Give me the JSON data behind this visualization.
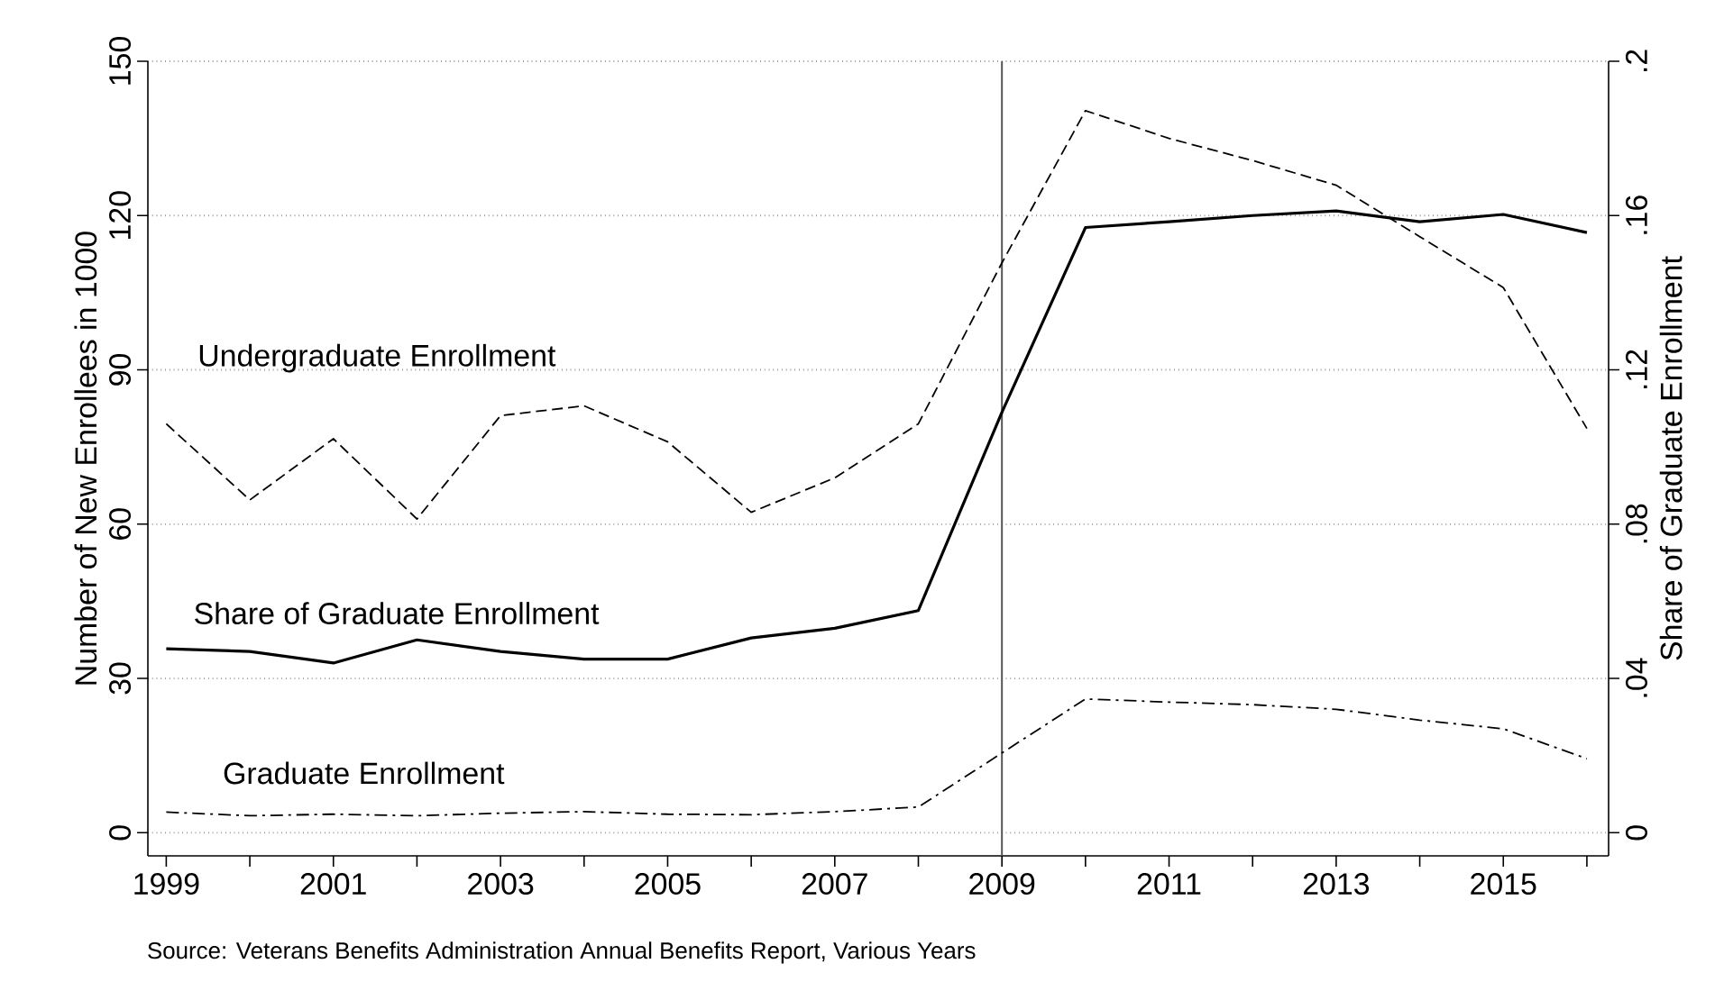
{
  "chart_data": {
    "type": "line",
    "x": [
      1999,
      2000,
      2001,
      2002,
      2003,
      2004,
      2005,
      2006,
      2007,
      2008,
      2009,
      2010,
      2011,
      2012,
      2013,
      2014,
      2015,
      2016
    ],
    "series": [
      {
        "name": "Undergraduate Enrollment",
        "color": "#000000",
        "line_style": "dashed",
        "values": [
          79.5,
          64.7,
          76.6,
          61,
          81.1,
          83,
          76,
          62.3,
          69,
          79.5,
          110.8,
          140.4,
          135,
          130.7,
          125.9,
          115.9,
          106,
          78.6
        ]
      },
      {
        "name": "Share of Graduate Enrollment",
        "color": "#000000",
        "line_style": "solid",
        "axis": "y2",
        "values": [
          0.0477,
          0.047,
          0.044,
          0.05,
          0.047,
          0.045,
          0.045,
          0.0505,
          0.053,
          0.0576,
          0.109,
          0.1569,
          0.1584,
          0.16,
          0.1612,
          0.1584,
          0.1603,
          0.1556
        ]
      },
      {
        "name": "Graduate Enrollment",
        "color": "#000000",
        "line_style": "dashdot",
        "values": [
          4,
          3.3,
          3.6,
          3.3,
          3.8,
          4.1,
          3.6,
          3.5,
          4.1,
          5,
          15.5,
          26,
          25.4,
          24.9,
          24,
          21.9,
          20.2,
          14.4
        ]
      }
    ],
    "ylabel": "Number of New Enrollees in 1000",
    "y2label": "Share of Graduate Enrollment",
    "xlim": [
      1998.78,
      2016.26
    ],
    "ylim": [
      -4.5,
      150
    ],
    "y2lim": [
      -0.006,
      0.2
    ],
    "xticks": [
      1999,
      {
        "value": 2000,
        "label": null
      },
      2001,
      {
        "value": 2002,
        "label": null
      },
      2003,
      {
        "value": 2004,
        "label": null
      },
      2005,
      {
        "value": 2006,
        "label": null
      },
      2007,
      {
        "value": 2008,
        "label": null
      },
      2009,
      {
        "value": 2010,
        "label": null
      },
      2011,
      {
        "value": 2012,
        "label": null
      },
      2013,
      {
        "value": 2014,
        "label": null
      },
      2015,
      {
        "value": 2016,
        "label": null
      }
    ],
    "yticks": [
      0,
      30,
      60,
      90,
      120,
      150
    ],
    "y2ticks": [
      0,
      {
        "value": 0.04,
        "label": ".04"
      },
      {
        "value": 0.08,
        "label": ".08"
      },
      {
        "value": 0.12,
        "label": ".12"
      },
      {
        "value": 0.16,
        "label": ".16"
      },
      {
        "value": 0.2,
        "label": ".2"
      }
    ],
    "grid": "y",
    "ref_lines": [
      {
        "axis": "x",
        "value": 2009,
        "color": "#555555"
      }
    ],
    "annotations": [
      "Source: Veterans Benefits Administration Annual Benefits Report, Various Years"
    ]
  }
}
